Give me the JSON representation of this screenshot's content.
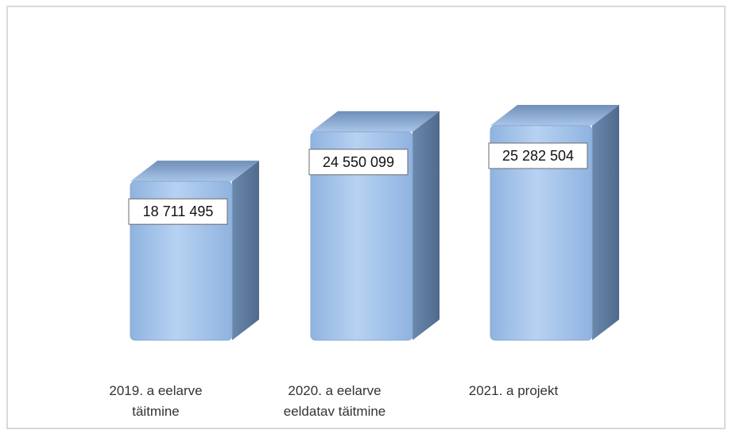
{
  "chart_data": {
    "type": "bar",
    "style": "3d-column",
    "categories": [
      [
        "2019. a eelarve",
        "täitmine"
      ],
      [
        "2020. a eelarve",
        "eeldatav täitmine"
      ],
      [
        "2021. a projekt"
      ]
    ],
    "values": [
      18711495,
      24550099,
      25282504
    ],
    "data_labels": [
      "18 711 495",
      "24 550 099",
      "25 282 504"
    ],
    "title": "",
    "xlabel": "",
    "ylabel": "",
    "ylim": [
      0,
      25282504
    ],
    "grid": false,
    "legend": "none",
    "colors": {
      "front": "#9dbfe8",
      "front_light": "#b9d4f2",
      "side": "#5c7899",
      "top": "#7f9fc8",
      "top_light": "#a8c4e6",
      "label_border": "#6b6b6b",
      "frame": "#d9d9d9"
    }
  }
}
